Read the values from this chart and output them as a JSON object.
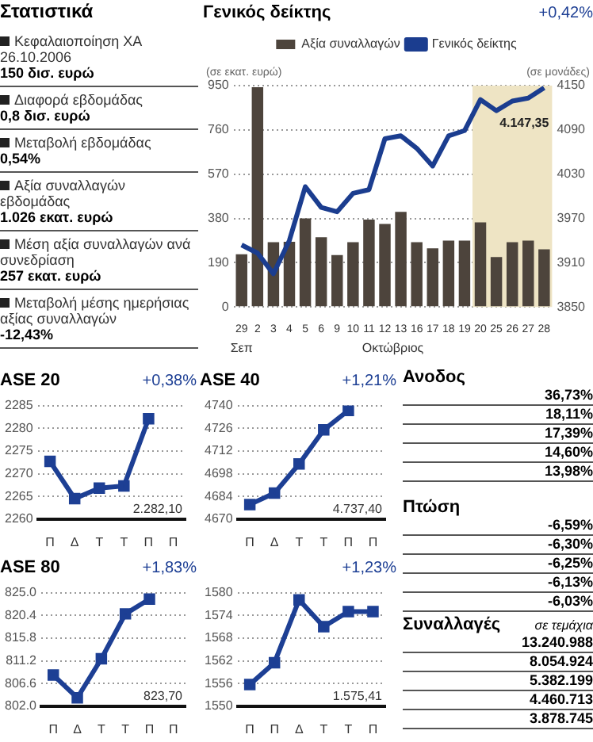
{
  "chart_data": [
    {
      "type": "other",
      "title": "Στατιστικά",
      "annotations": [
        "Κεφαλαιοποίηση ΧΑ 26.10.2006",
        "150 δισ. ευρώ",
        "Διαφορά εβδομάδας",
        "0,8 δισ. ευρώ",
        "Μεταβολή εβδομάδας",
        "0,54%",
        "Αξία συναλλαγών εβδομάδας",
        "1.026 εκατ. ευρώ",
        "Μέση αξία συναλλαγών ανά συνεδρίαση",
        "257 εκατ. ευρώ",
        "Μεταβολή μέσης ημερήσιας αξίας συναλλαγών",
        "-12,43%"
      ]
    },
    {
      "type": "bar",
      "title": "Γενικός δείκτης",
      "subtitle": "+0,42%",
      "xlabel": "Οκτώβριος",
      "ylabel": "(σε εκατ. ευρώ)",
      "y2label": "(σε μονάδες)",
      "categories": [
        "29",
        "2",
        "3",
        "4",
        "5",
        "6",
        "9",
        "10",
        "11",
        "12",
        "13",
        "16",
        "17",
        "18",
        "19",
        "20",
        "25",
        "26",
        "27",
        "28"
      ],
      "series": [
        {
          "name": "Αξία συναλλαγών",
          "type": "bar",
          "color": "#4d443c",
          "values": [
            226,
            943,
            278,
            280,
            380,
            299,
            223,
            278,
            375,
            356,
            408,
            278,
            252,
            285,
            285,
            363,
            214,
            278,
            285,
            247
          ]
        },
        {
          "name": "Γενικός δείκτης",
          "type": "line",
          "axis": "y2",
          "color": "#1b3d8f",
          "values": [
            3934,
            3923,
            3895,
            3940,
            4013,
            3985,
            3979,
            4004,
            4009,
            4078,
            4082,
            4065,
            4041,
            4082,
            4089,
            4131,
            4116,
            4129,
            4133,
            4147
          ]
        }
      ],
      "ylim": [
        0,
        950
      ],
      "yticks": [
        0,
        190,
        380,
        570,
        760,
        950
      ],
      "y2lim": [
        3850,
        4150
      ],
      "y2ticks": [
        3850,
        3910,
        3970,
        4030,
        4090,
        4150
      ],
      "grid": "y",
      "legend": "top",
      "bands": [
        {
          "axis": "x",
          "from": "20",
          "to": "28",
          "color": "#eee4c4"
        }
      ],
      "annotations": [
        "4.147,35",
        "Σεπ"
      ]
    },
    {
      "type": "line",
      "title": "ASE 20",
      "subtitle": "+0,38%",
      "categories": [
        "Π",
        "Δ",
        "Τ",
        "Τ",
        "Π",
        "Π"
      ],
      "values": [
        2272.7,
        2264.5,
        2266.8,
        2267.3,
        2282.1,
        null
      ],
      "color": "#1d3f94",
      "ylim": [
        2260,
        2285
      ],
      "yticks": [
        2260,
        2265,
        2270,
        2275,
        2280,
        2285
      ],
      "grid": "y",
      "marker": "square",
      "annotations": [
        "2.282,10"
      ]
    },
    {
      "type": "line",
      "title": "ASE 40",
      "subtitle": "+1,21%",
      "categories": [
        "Π",
        "Δ",
        "Τ",
        "Τ",
        "Π",
        "Π"
      ],
      "values": [
        4679,
        4686,
        4704,
        4725,
        4737,
        null
      ],
      "color": "#1d3f94",
      "ylim": [
        4670,
        4740
      ],
      "yticks": [
        4670,
        4684,
        4698,
        4712,
        4726,
        4740
      ],
      "grid": "y",
      "marker": "square",
      "annotations": [
        "4.737,40"
      ]
    },
    {
      "type": "line",
      "title": "ASE 80",
      "subtitle": "+1,83%",
      "categories": [
        "Π",
        "Δ",
        "Τ",
        "Τ",
        "Π",
        "Π"
      ],
      "values": [
        808.3,
        803.7,
        811.6,
        820.7,
        823.7,
        null
      ],
      "color": "#1d3f94",
      "ylim": [
        802,
        825
      ],
      "yticks": [
        {
          "value": 802,
          "label": "802.0"
        },
        {
          "value": 806.6,
          "label": "806.6"
        },
        {
          "value": 811.2,
          "label": "811.2"
        },
        {
          "value": 815.8,
          "label": "815.8"
        },
        {
          "value": 820.4,
          "label": "820.4"
        },
        {
          "value": 825,
          "label": "825.0"
        }
      ],
      "grid": "y",
      "marker": "square",
      "annotations": [
        "823,70"
      ]
    },
    {
      "type": "line",
      "subtitle": "+1,23%",
      "categories": [
        "Π",
        "Π",
        "Δ",
        "Τ",
        "Τ",
        "Π"
      ],
      "values": [
        1555.7,
        1561.5,
        1578.1,
        1571,
        1575,
        1575
      ],
      "color": "#1d3f94",
      "ylim": [
        1550,
        1580
      ],
      "yticks": [
        1550,
        1556,
        1562,
        1568,
        1574,
        1580
      ],
      "grid": "y",
      "marker": "square",
      "annotations": [
        "1.575,41"
      ]
    },
    {
      "type": "other",
      "title": "Ανοδος",
      "annotations": [
        "36,73%",
        "18,11%",
        "17,39%",
        "14,60%",
        "13,98%"
      ]
    },
    {
      "type": "other",
      "title": "Πτώση",
      "annotations": [
        "-6,59%",
        "-6,30%",
        "-6,25%",
        "-6,13%",
        "-6,03%"
      ]
    },
    {
      "type": "other",
      "title": "Συναλλαγές",
      "subtitle": "σε τεμάχια",
      "annotations": [
        "13.240.988",
        "8.054.924",
        "5.382.199",
        "4.460.713",
        "3.878.745"
      ]
    }
  ]
}
